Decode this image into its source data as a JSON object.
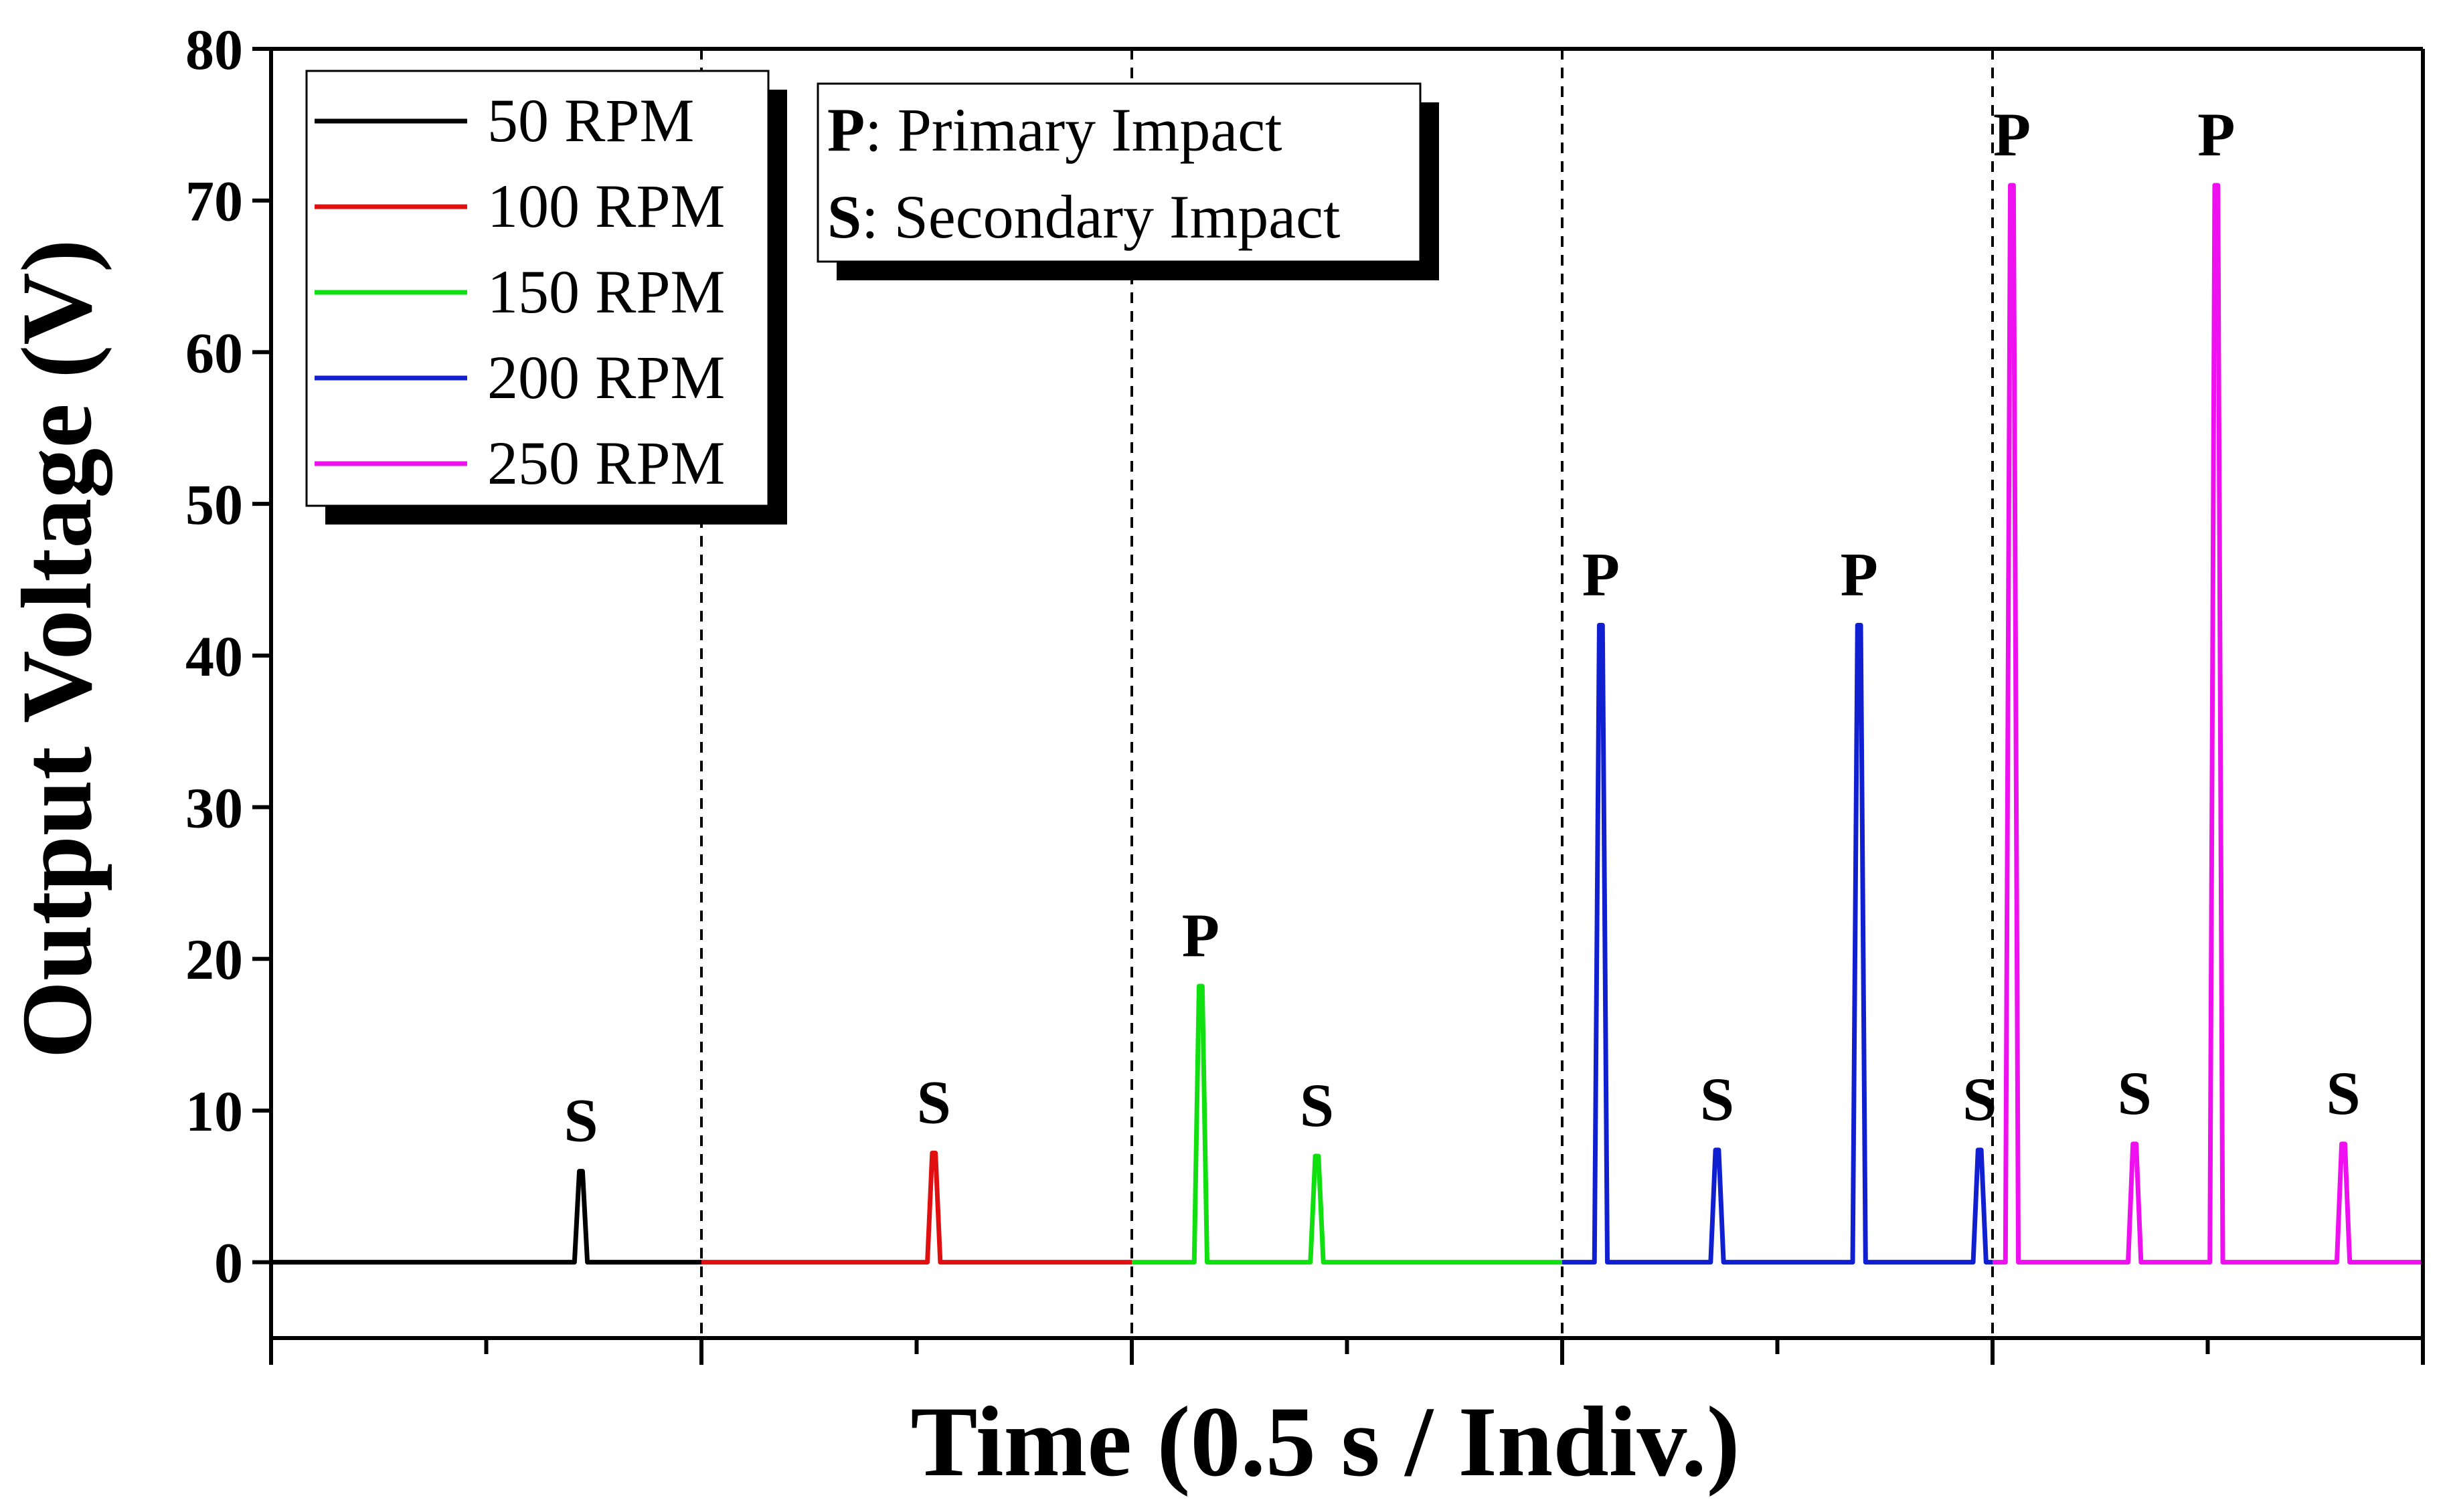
{
  "chart_data": {
    "type": "line",
    "xlabel": "Time (0.5 s / Indiv.)",
    "ylabel": "Output Voltage (V)",
    "ylim": [
      -5,
      80
    ],
    "xlim": [
      0,
      10
    ],
    "yticks": [
      0,
      10,
      20,
      30,
      40,
      50,
      60,
      70,
      80
    ],
    "ytick_labels": [
      "0",
      "10",
      "20",
      "30",
      "40",
      "50",
      "60",
      "70",
      "80"
    ],
    "xticks": [
      0,
      1,
      2,
      3,
      4,
      5,
      6,
      7,
      8,
      9,
      10
    ],
    "segment_dividers": [
      2,
      4,
      6,
      8
    ],
    "legend": {
      "position": "top-left",
      "entries": [
        {
          "label": "50 RPM",
          "color": "#000000"
        },
        {
          "label": "100 RPM",
          "color": "#e01010"
        },
        {
          "label": "150 RPM",
          "color": "#10e010"
        },
        {
          "label": "200 RPM",
          "color": "#1020d0"
        },
        {
          "label": "250 RPM",
          "color": "#ee10ee"
        }
      ]
    },
    "annotation_box": {
      "lines": [
        {
          "key": "P",
          "text": ": Primary Impact"
        },
        {
          "key": "S",
          "text": ": Secondary Impact"
        }
      ]
    },
    "series": [
      {
        "name": "50 RPM",
        "color": "#000000",
        "x_range": [
          0,
          2
        ],
        "peaks": [
          {
            "x": 1.44,
            "y": 6,
            "label": "S"
          }
        ]
      },
      {
        "name": "100 RPM",
        "color": "#e01010",
        "x_range": [
          2,
          4
        ],
        "peaks": [
          {
            "x": 3.08,
            "y": 7.2,
            "label": "S"
          }
        ]
      },
      {
        "name": "150 RPM",
        "color": "#10e010",
        "x_range": [
          4,
          6
        ],
        "peaks": [
          {
            "x": 4.32,
            "y": 18.2,
            "label": "P"
          },
          {
            "x": 4.86,
            "y": 7,
            "label": "S"
          }
        ]
      },
      {
        "name": "200 RPM",
        "color": "#1020d0",
        "x_range": [
          6,
          8
        ],
        "peaks": [
          {
            "x": 6.18,
            "y": 42,
            "label": "P"
          },
          {
            "x": 6.72,
            "y": 7.4,
            "label": "S"
          },
          {
            "x": 7.38,
            "y": 42,
            "label": "P"
          },
          {
            "x": 7.94,
            "y": 7.4,
            "label": "S"
          }
        ]
      },
      {
        "name": "250 RPM",
        "color": "#ee10ee",
        "x_range": [
          8,
          10
        ],
        "peaks": [
          {
            "x": 8.09,
            "y": 71,
            "label": "P"
          },
          {
            "x": 8.66,
            "y": 7.8,
            "label": "S"
          },
          {
            "x": 9.04,
            "y": 71,
            "label": "P"
          },
          {
            "x": 9.63,
            "y": 7.8,
            "label": "S"
          }
        ]
      }
    ]
  }
}
